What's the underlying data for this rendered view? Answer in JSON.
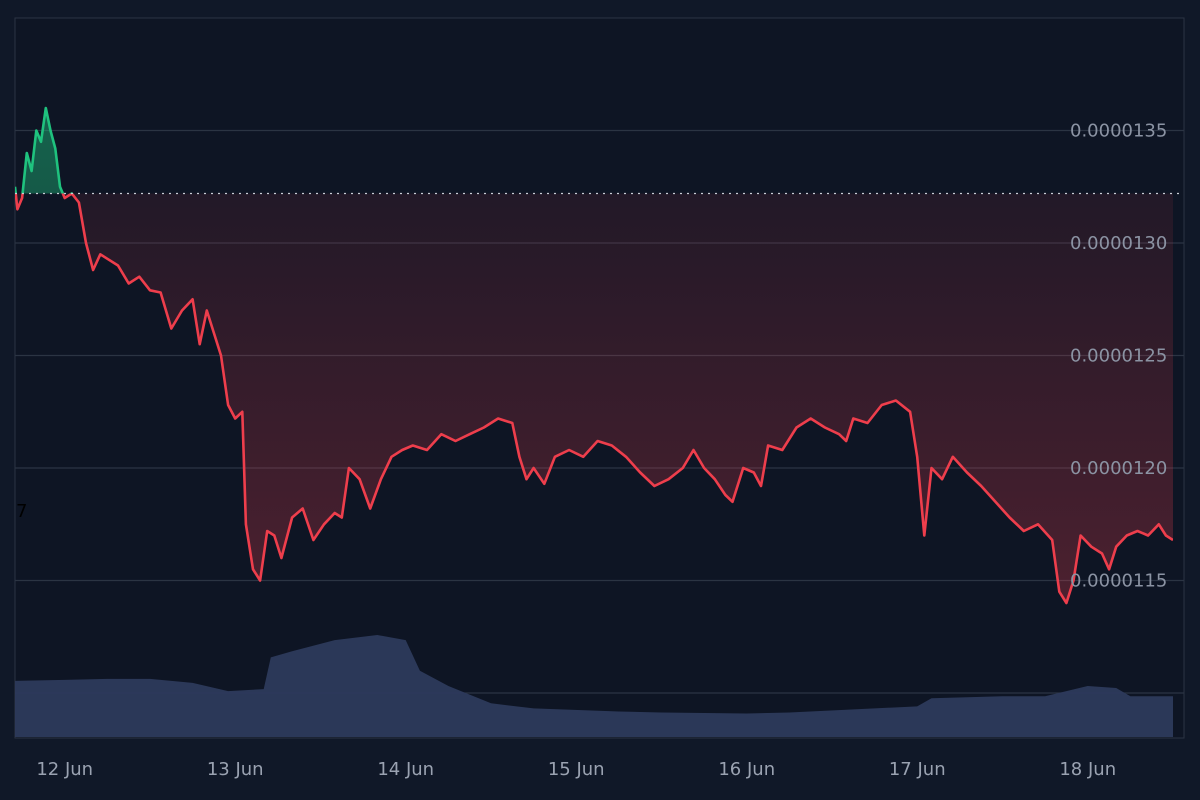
{
  "chart_data": {
    "type": "line",
    "title": "",
    "xlabel": "",
    "ylabel": "",
    "colors": {
      "background": "#0e1524",
      "grid": "#2b3443",
      "up_line": "#1fc27e",
      "down_line": "#ee3e4c",
      "volume": "#2d3a5c",
      "reference_line": "#c9ced6",
      "tick_text": "#8b93a3"
    },
    "ylim": [
      1.08e-05,
      1.4e-05
    ],
    "yticks": [
      {
        "value": 1.35e-05,
        "label": "0.0000135"
      },
      {
        "value": 1.3e-05,
        "label": "0.0000130"
      },
      {
        "value": 1.25e-05,
        "label": "0.0000125"
      },
      {
        "value": 1.2e-05,
        "label": "0.0000120"
      },
      {
        "value": 1.15e-05,
        "label": "0.0000115"
      }
    ],
    "xlim": [
      "2025-06-11 17:00",
      "2025-06-18 12:00"
    ],
    "xticks": [
      {
        "value": "2025-06-12",
        "label": "12 Jun"
      },
      {
        "value": "2025-06-13",
        "label": "13 Jun"
      },
      {
        "value": "2025-06-14",
        "label": "14 Jun"
      },
      {
        "value": "2025-06-15",
        "label": "15 Jun"
      },
      {
        "value": "2025-06-16",
        "label": "16 Jun"
      },
      {
        "value": "2025-06-17",
        "label": "17 Jun"
      },
      {
        "value": "2025-06-18",
        "label": "18 Jun"
      }
    ],
    "reference_price": 1.322e-05,
    "left_edge_label": "7",
    "series": [
      {
        "points": [
          [
            "2025-06-11 17:00",
            1.325e-05
          ],
          [
            "2025-06-11 17:20",
            1.315e-05
          ],
          [
            "2025-06-11 18:00",
            1.32e-05
          ],
          [
            "2025-06-11 18:40",
            1.34e-05
          ],
          [
            "2025-06-11 19:20",
            1.332e-05
          ],
          [
            "2025-06-11 20:00",
            1.35e-05
          ],
          [
            "2025-06-11 20:40",
            1.345e-05
          ],
          [
            "2025-06-11 21:20",
            1.36e-05
          ],
          [
            "2025-06-11 22:00",
            1.35e-05
          ],
          [
            "2025-06-11 22:40",
            1.342e-05
          ],
          [
            "2025-06-11 23:20",
            1.325e-05
          ],
          [
            "2025-06-12 00:00",
            1.32e-05
          ],
          [
            "2025-06-12 01:00",
            1.322e-05
          ],
          [
            "2025-06-12 02:00",
            1.318e-05
          ],
          [
            "2025-06-12 03:00",
            1.3e-05
          ],
          [
            "2025-06-12 04:00",
            1.288e-05
          ],
          [
            "2025-06-12 05:00",
            1.295e-05
          ],
          [
            "2025-06-12 06:00",
            1.293e-05
          ],
          [
            "2025-06-12 07:30",
            1.29e-05
          ],
          [
            "2025-06-12 09:00",
            1.282e-05
          ],
          [
            "2025-06-12 10:30",
            1.285e-05
          ],
          [
            "2025-06-12 12:00",
            1.279e-05
          ],
          [
            "2025-06-12 13:30",
            1.278e-05
          ],
          [
            "2025-06-12 15:00",
            1.262e-05
          ],
          [
            "2025-06-12 16:30",
            1.27e-05
          ],
          [
            "2025-06-12 18:00",
            1.275e-05
          ],
          [
            "2025-06-12 19:00",
            1.255e-05
          ],
          [
            "2025-06-12 20:00",
            1.27e-05
          ],
          [
            "2025-06-12 21:00",
            1.26e-05
          ],
          [
            "2025-06-12 22:00",
            1.25e-05
          ],
          [
            "2025-06-12 23:00",
            1.228e-05
          ],
          [
            "2025-06-13 00:00",
            1.222e-05
          ],
          [
            "2025-06-13 01:00",
            1.225e-05
          ],
          [
            "2025-06-13 01:30",
            1.175e-05
          ],
          [
            "2025-06-13 02:30",
            1.155e-05
          ],
          [
            "2025-06-13 03:30",
            1.15e-05
          ],
          [
            "2025-06-13 04:30",
            1.172e-05
          ],
          [
            "2025-06-13 05:30",
            1.17e-05
          ],
          [
            "2025-06-13 06:30",
            1.16e-05
          ],
          [
            "2025-06-13 08:00",
            1.178e-05
          ],
          [
            "2025-06-13 09:30",
            1.182e-05
          ],
          [
            "2025-06-13 11:00",
            1.168e-05
          ],
          [
            "2025-06-13 12:30",
            1.175e-05
          ],
          [
            "2025-06-13 14:00",
            1.18e-05
          ],
          [
            "2025-06-13 15:00",
            1.178e-05
          ],
          [
            "2025-06-13 16:00",
            1.2e-05
          ],
          [
            "2025-06-13 17:30",
            1.195e-05
          ],
          [
            "2025-06-13 19:00",
            1.182e-05
          ],
          [
            "2025-06-13 20:30",
            1.195e-05
          ],
          [
            "2025-06-13 22:00",
            1.205e-05
          ],
          [
            "2025-06-13 23:30",
            1.208e-05
          ],
          [
            "2025-06-14 01:00",
            1.21e-05
          ],
          [
            "2025-06-14 03:00",
            1.208e-05
          ],
          [
            "2025-06-14 05:00",
            1.215e-05
          ],
          [
            "2025-06-14 07:00",
            1.212e-05
          ],
          [
            "2025-06-14 09:00",
            1.215e-05
          ],
          [
            "2025-06-14 11:00",
            1.218e-05
          ],
          [
            "2025-06-14 13:00",
            1.222e-05
          ],
          [
            "2025-06-14 15:00",
            1.22e-05
          ],
          [
            "2025-06-14 16:00",
            1.205e-05
          ],
          [
            "2025-06-14 17:00",
            1.195e-05
          ],
          [
            "2025-06-14 18:00",
            1.2e-05
          ],
          [
            "2025-06-14 19:30",
            1.193e-05
          ],
          [
            "2025-06-14 21:00",
            1.205e-05
          ],
          [
            "2025-06-14 23:00",
            1.208e-05
          ],
          [
            "2025-06-15 01:00",
            1.205e-05
          ],
          [
            "2025-06-15 03:00",
            1.212e-05
          ],
          [
            "2025-06-15 05:00",
            1.21e-05
          ],
          [
            "2025-06-15 07:00",
            1.205e-05
          ],
          [
            "2025-06-15 09:00",
            1.198e-05
          ],
          [
            "2025-06-15 11:00",
            1.192e-05
          ],
          [
            "2025-06-15 13:00",
            1.195e-05
          ],
          [
            "2025-06-15 15:00",
            1.2e-05
          ],
          [
            "2025-06-15 16:30",
            1.208e-05
          ],
          [
            "2025-06-15 18:00",
            1.2e-05
          ],
          [
            "2025-06-15 19:30",
            1.195e-05
          ],
          [
            "2025-06-15 21:00",
            1.188e-05
          ],
          [
            "2025-06-15 22:00",
            1.185e-05
          ],
          [
            "2025-06-15 23:30",
            1.2e-05
          ],
          [
            "2025-06-16 01:00",
            1.198e-05
          ],
          [
            "2025-06-16 02:00",
            1.192e-05
          ],
          [
            "2025-06-16 03:00",
            1.21e-05
          ],
          [
            "2025-06-16 05:00",
            1.208e-05
          ],
          [
            "2025-06-16 07:00",
            1.218e-05
          ],
          [
            "2025-06-16 09:00",
            1.222e-05
          ],
          [
            "2025-06-16 11:00",
            1.218e-05
          ],
          [
            "2025-06-16 13:00",
            1.215e-05
          ],
          [
            "2025-06-16 14:00",
            1.212e-05
          ],
          [
            "2025-06-16 15:00",
            1.222e-05
          ],
          [
            "2025-06-16 17:00",
            1.22e-05
          ],
          [
            "2025-06-16 19:00",
            1.228e-05
          ],
          [
            "2025-06-16 21:00",
            1.23e-05
          ],
          [
            "2025-06-16 23:00",
            1.225e-05
          ],
          [
            "2025-06-17 00:00",
            1.205e-05
          ],
          [
            "2025-06-17 01:00",
            1.17e-05
          ],
          [
            "2025-06-17 02:00",
            1.2e-05
          ],
          [
            "2025-06-17 03:30",
            1.195e-05
          ],
          [
            "2025-06-17 05:00",
            1.205e-05
          ],
          [
            "2025-06-17 07:00",
            1.198e-05
          ],
          [
            "2025-06-17 09:00",
            1.192e-05
          ],
          [
            "2025-06-17 11:00",
            1.185e-05
          ],
          [
            "2025-06-17 13:00",
            1.178e-05
          ],
          [
            "2025-06-17 15:00",
            1.172e-05
          ],
          [
            "2025-06-17 17:00",
            1.175e-05
          ],
          [
            "2025-06-17 19:00",
            1.168e-05
          ],
          [
            "2025-06-17 20:00",
            1.145e-05
          ],
          [
            "2025-06-17 21:00",
            1.14e-05
          ],
          [
            "2025-06-17 22:00",
            1.15e-05
          ],
          [
            "2025-06-17 23:00",
            1.17e-05
          ],
          [
            "2025-06-18 00:30",
            1.165e-05
          ],
          [
            "2025-06-18 02:00",
            1.162e-05
          ],
          [
            "2025-06-18 03:00",
            1.155e-05
          ],
          [
            "2025-06-18 04:00",
            1.165e-05
          ],
          [
            "2025-06-18 05:30",
            1.17e-05
          ],
          [
            "2025-06-18 07:00",
            1.172e-05
          ],
          [
            "2025-06-18 08:30",
            1.17e-05
          ],
          [
            "2025-06-18 10:00",
            1.175e-05
          ],
          [
            "2025-06-18 11:00",
            1.17e-05
          ],
          [
            "2025-06-18 12:00",
            1.168e-05
          ]
        ]
      }
    ],
    "volume": {
      "relative_to_peak": true,
      "points": [
        [
          "2025-06-11 17:00",
          0.55
        ],
        [
          "2025-06-12 00:00",
          0.56
        ],
        [
          "2025-06-12 06:00",
          0.57
        ],
        [
          "2025-06-12 12:00",
          0.57
        ],
        [
          "2025-06-12 18:00",
          0.53
        ],
        [
          "2025-06-12 23:00",
          0.45
        ],
        [
          "2025-06-13 04:00",
          0.47
        ],
        [
          "2025-06-13 05:00",
          0.78
        ],
        [
          "2025-06-13 08:00",
          0.84
        ],
        [
          "2025-06-13 14:00",
          0.95
        ],
        [
          "2025-06-13 20:00",
          1.0
        ],
        [
          "2025-06-14 00:00",
          0.95
        ],
        [
          "2025-06-14 02:00",
          0.65
        ],
        [
          "2025-06-14 06:00",
          0.5
        ],
        [
          "2025-06-14 12:00",
          0.33
        ],
        [
          "2025-06-14 18:00",
          0.28
        ],
        [
          "2025-06-15 06:00",
          0.25
        ],
        [
          "2025-06-15 12:00",
          0.24
        ],
        [
          "2025-06-16 00:00",
          0.23
        ],
        [
          "2025-06-16 06:00",
          0.24
        ],
        [
          "2025-06-16 18:00",
          0.28
        ],
        [
          "2025-06-17 00:00",
          0.3
        ],
        [
          "2025-06-17 02:00",
          0.38
        ],
        [
          "2025-06-17 12:00",
          0.4
        ],
        [
          "2025-06-17 18:00",
          0.4
        ],
        [
          "2025-06-18 00:00",
          0.5
        ],
        [
          "2025-06-18 04:00",
          0.48
        ],
        [
          "2025-06-18 06:00",
          0.4
        ],
        [
          "2025-06-18 12:00",
          0.4
        ]
      ]
    }
  }
}
